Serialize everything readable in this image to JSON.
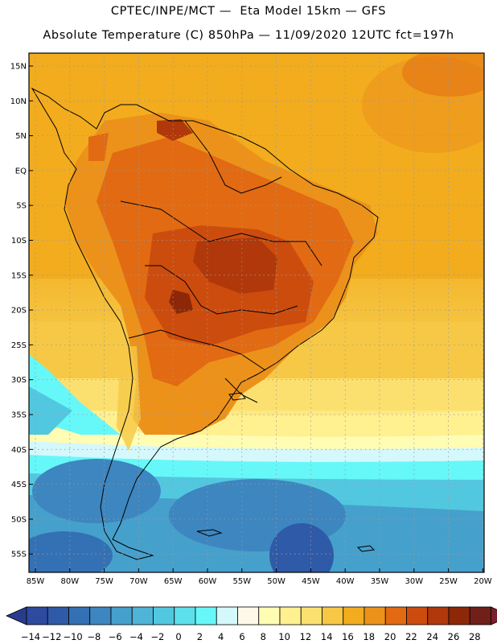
{
  "header": {
    "line1": "CPTEC/INPE/MCT —  Eta Model 15km — GFS",
    "line2": "Absolute Temperature (C) 850hPa — 11/09/2020 12UTC fct=197h"
  },
  "axes": {
    "lat_labels": [
      "15N",
      "10N",
      "5N",
      "EQ",
      "5S",
      "10S",
      "15S",
      "20S",
      "25S",
      "30S",
      "35S",
      "40S",
      "45S",
      "50S",
      "55S"
    ],
    "lon_labels": [
      "85W",
      "80W",
      "75W",
      "70W",
      "65W",
      "60W",
      "55W",
      "50W",
      "45W",
      "40W",
      "35W",
      "30W",
      "25W",
      "20W"
    ]
  },
  "colorbar": {
    "labels": [
      "-14",
      "-12",
      "-10",
      "-8",
      "-6",
      "-4",
      "-2",
      "0",
      "2",
      "4",
      "6",
      "8",
      "10",
      "12",
      "14",
      "16",
      "18",
      "20",
      "22",
      "24",
      "26",
      "28"
    ],
    "colors": [
      "#2d4aa0",
      "#2f5aa8",
      "#3470b4",
      "#3d86c0",
      "#46a0cc",
      "#4fb4d8",
      "#52c8e0",
      "#5ce0ec",
      "#66f8f8",
      "#d4f8fc",
      "#fff8e8",
      "#fffcb4",
      "#fff090",
      "#fbe070",
      "#f6c846",
      "#f2ac1e",
      "#ec921a",
      "#e26a12",
      "#cc4c0e",
      "#b0380a",
      "#8c2808",
      "#702018"
    ],
    "low_color": "#283c8c",
    "high_color": "#782030"
  }
}
